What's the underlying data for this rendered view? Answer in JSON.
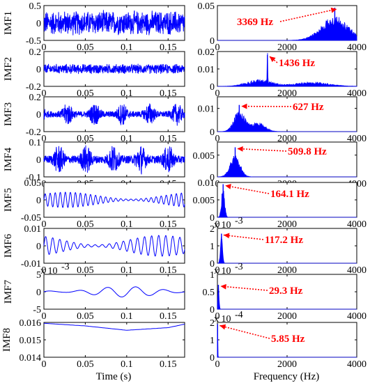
{
  "figure": {
    "time_xlabel": "Time (s)",
    "freq_xlabel": "Frequency (Hz)"
  },
  "colors": {
    "signal": "#0000ff",
    "annotation": "#ff0000",
    "axis": "#000000"
  },
  "chart_data": [
    {
      "type": "line",
      "title": "",
      "ylabel": "IMF1",
      "xlabel": "",
      "xlim": [
        0,
        0.17
      ],
      "ylim": [
        -0.5,
        0.5
      ],
      "xticks": [
        "0",
        "0.05",
        "0.1",
        "0.15"
      ],
      "xtick_values": [
        0,
        0.05,
        0.1,
        0.15
      ],
      "yticks": [
        "-0.5",
        "0",
        "0.5"
      ],
      "ytick_values": [
        -0.5,
        0,
        0.5
      ],
      "series": [
        {
          "style": "noise",
          "amplitude": 0.38,
          "envelope": "uniform"
        }
      ]
    },
    {
      "type": "line",
      "title": "",
      "ylabel": "IMF2",
      "xlabel": "",
      "xlim": [
        0,
        0.17
      ],
      "ylim": [
        -0.2,
        0.2
      ],
      "xticks": [
        "0",
        "0.05",
        "0.1",
        "0.15"
      ],
      "xtick_values": [
        0,
        0.05,
        0.1,
        0.15
      ],
      "yticks": [
        "-0.2",
        "0",
        "0.2"
      ],
      "ytick_values": [
        -0.2,
        0,
        0.2
      ],
      "series": [
        {
          "style": "noise",
          "amplitude": 0.06,
          "envelope": "uniform"
        }
      ]
    },
    {
      "type": "line",
      "title": "",
      "ylabel": "IMF3",
      "xlabel": "",
      "xlim": [
        0,
        0.17
      ],
      "ylim": [
        -0.2,
        0.2
      ],
      "xticks": [
        "0",
        "0.05",
        "0.1",
        "0.15"
      ],
      "xtick_values": [
        0,
        0.05,
        0.1,
        0.15
      ],
      "yticks": [
        "-0.2",
        "0",
        "0.2"
      ],
      "ytick_values": [
        -0.2,
        0,
        0.2
      ],
      "series": [
        {
          "style": "burst",
          "amplitude": 0.13,
          "envelope": "bursts"
        }
      ]
    },
    {
      "type": "line",
      "title": "",
      "ylabel": "IMF4",
      "xlabel": "",
      "xlim": [
        0,
        0.17
      ],
      "ylim": [
        -0.1,
        0.1
      ],
      "xticks": [
        "0",
        "0.05",
        "0.1",
        "0.15"
      ],
      "xtick_values": [
        0,
        0.05,
        0.1,
        0.15
      ],
      "yticks": [
        "-0.1",
        "0",
        "0.1"
      ],
      "ytick_values": [
        -0.1,
        0,
        0.1
      ],
      "series": [
        {
          "style": "burst",
          "amplitude": 0.085,
          "envelope": "bursts"
        }
      ]
    },
    {
      "type": "line",
      "title": "",
      "ylabel": "IMF5",
      "xlabel": "",
      "xlim": [
        0,
        0.17
      ],
      "ylim": [
        -0.05,
        0.05
      ],
      "xticks": [
        "0",
        "0.05",
        "0.1",
        "0.15"
      ],
      "xtick_values": [
        0,
        0.05,
        0.1,
        0.15
      ],
      "yticks": [
        "-0.05",
        "0",
        "0.05"
      ],
      "ytick_values": [
        -0.05,
        0,
        0.05
      ],
      "series": [
        {
          "style": "oscillation",
          "frequency_hz": 164.1,
          "amplitude": 0.022
        }
      ]
    },
    {
      "type": "line",
      "title": "",
      "ylabel": "IMF6",
      "xlabel": "",
      "xlim": [
        0,
        0.17
      ],
      "ylim": [
        -0.01,
        0.01
      ],
      "xticks": [
        "0",
        "0.05",
        "0.1",
        "0.15"
      ],
      "xtick_values": [
        0,
        0.05,
        0.1,
        0.15
      ],
      "yticks": [
        "-0.01",
        "0",
        "0.01"
      ],
      "ytick_values": [
        -0.01,
        0,
        0.01
      ],
      "series": [
        {
          "style": "oscillation",
          "frequency_hz": 117.2,
          "amplitude": 0.006
        }
      ]
    },
    {
      "type": "line",
      "title": "",
      "ylabel": "IMF7",
      "xlabel": "",
      "xlim": [
        0,
        0.17
      ],
      "ylim": [
        -0.005,
        0.005
      ],
      "xticks": [
        "0",
        "0.05",
        "0.1",
        "0.15"
      ],
      "xtick_values": [
        0,
        0.05,
        0.1,
        0.15
      ],
      "yticks": [
        "-5",
        "0",
        "5"
      ],
      "ytick_values": [
        -0.005,
        0,
        0.005
      ],
      "exponent_label": "x 10",
      "exponent_power": "-3",
      "series": [
        {
          "style": "oscillation",
          "frequency_hz": 29.3,
          "amplitude": 0.0015,
          "offset": 0.0
        }
      ]
    },
    {
      "type": "line",
      "title": "",
      "ylabel": "IMF8",
      "xlabel": "Time (s)",
      "xlim": [
        0,
        0.17
      ],
      "ylim": [
        0.014,
        0.016
      ],
      "xticks": [
        "0",
        "0.05",
        "0.1",
        "0.15"
      ],
      "xtick_values": [
        0,
        0.05,
        0.1,
        0.15
      ],
      "yticks": [
        "0.014",
        "0.015",
        "0.016"
      ],
      "ytick_values": [
        0.014,
        0.015,
        0.016
      ],
      "series": [
        {
          "style": "trend",
          "x": [
            0,
            0.05,
            0.1,
            0.15,
            0.17
          ],
          "y": [
            0.01595,
            0.0158,
            0.01555,
            0.0157,
            0.0159
          ]
        }
      ]
    },
    {
      "type": "area",
      "title": "",
      "xlim": [
        0,
        4000
      ],
      "ylim": [
        0,
        0.05
      ],
      "xticks": [
        "0",
        "2000",
        "4000"
      ],
      "xtick_values": [
        0,
        2000,
        4000
      ],
      "yticks": [
        "0",
        "0.05"
      ],
      "ytick_values": [
        0,
        0.05
      ],
      "annotation": {
        "text": "3369 Hz",
        "peak_hz": 3369,
        "peak_value": 0.047
      },
      "spectrum": [
        {
          "center_hz": 3369,
          "width_hz": 550,
          "height": 0.035,
          "noise": 0.5
        }
      ]
    },
    {
      "type": "area",
      "title": "",
      "xlim": [
        0,
        4000
      ],
      "ylim": [
        0,
        0.02
      ],
      "xticks": [
        "0",
        "2000",
        "4000"
      ],
      "xtick_values": [
        0,
        2000,
        4000
      ],
      "yticks": [
        "0",
        "0.01",
        "0.02"
      ],
      "ytick_values": [
        0,
        0.01,
        0.02
      ],
      "annotation": {
        "text": "1436 Hz",
        "peak_hz": 1436,
        "peak_value": 0.018
      },
      "spectrum": [
        {
          "center_hz": 1436,
          "width_hz": 12,
          "height": 0.018,
          "noise": 0.0
        },
        {
          "center_hz": 1200,
          "width_hz": 500,
          "height": 0.004,
          "noise": 0.7
        },
        {
          "center_hz": 2700,
          "width_hz": 700,
          "height": 0.0025,
          "noise": 0.6
        }
      ]
    },
    {
      "type": "area",
      "title": "",
      "xlim": [
        0,
        4000
      ],
      "ylim": [
        0,
        0.015
      ],
      "xticks": [
        "0",
        "2000",
        "4000"
      ],
      "xtick_values": [
        0,
        2000,
        4000
      ],
      "yticks": [
        "0",
        "0.01"
      ],
      "ytick_values": [
        0,
        0.01
      ],
      "annotation": {
        "text": "627 Hz",
        "peak_hz": 627,
        "peak_value": 0.0115
      },
      "spectrum": [
        {
          "center_hz": 627,
          "width_hz": 220,
          "height": 0.009,
          "noise": 0.5
        },
        {
          "center_hz": 1150,
          "width_hz": 300,
          "height": 0.004,
          "noise": 0.6
        }
      ]
    },
    {
      "type": "area",
      "title": "",
      "xlim": [
        0,
        4000
      ],
      "ylim": [
        0,
        0.008
      ],
      "xticks": [
        "0",
        "2000",
        "4000"
      ],
      "xtick_values": [
        0,
        2000,
        4000
      ],
      "yticks": [
        "0",
        "0.005"
      ],
      "ytick_values": [
        0,
        0.005
      ],
      "annotation": {
        "text": "509.8 Hz",
        "peak_hz": 509.8,
        "peak_value": 0.0068
      },
      "spectrum": [
        {
          "center_hz": 509.8,
          "width_hz": 200,
          "height": 0.005,
          "noise": 0.4
        }
      ]
    },
    {
      "type": "area",
      "title": "",
      "xlim": [
        0,
        4000
      ],
      "ylim": [
        0,
        0.01
      ],
      "xticks": [
        "0",
        "2000",
        "4000"
      ],
      "xtick_values": [
        0,
        2000,
        4000
      ],
      "yticks": [
        "0",
        "0.005",
        "0.01"
      ],
      "ytick_values": [
        0,
        0.005,
        0.01
      ],
      "annotation": {
        "text": "164.1 Hz",
        "peak_hz": 164.1,
        "peak_value": 0.0095
      },
      "spectrum": [
        {
          "center_hz": 164.1,
          "width_hz": 60,
          "height": 0.0095,
          "noise": 0.5
        }
      ]
    },
    {
      "type": "area",
      "title": "",
      "xlim": [
        0,
        4000
      ],
      "ylim": [
        0,
        0.002
      ],
      "xticks": [
        "0",
        "2000",
        "4000"
      ],
      "xtick_values": [
        0,
        2000,
        4000
      ],
      "yticks": [
        "0",
        "1",
        "2"
      ],
      "ytick_values": [
        0,
        0.001,
        0.002
      ],
      "exponent_label": "x 10",
      "exponent_power": "-3",
      "annotation": {
        "text": "117.2 Hz",
        "peak_hz": 117.2,
        "peak_value": 0.0017
      },
      "spectrum": [
        {
          "center_hz": 117.2,
          "width_hz": 40,
          "height": 0.0017,
          "noise": 0.3
        }
      ]
    },
    {
      "type": "area",
      "title": "",
      "xlim": [
        0,
        4000
      ],
      "ylim": [
        0,
        0.001
      ],
      "xticks": [
        "0",
        "2000",
        "4000"
      ],
      "xtick_values": [
        0,
        2000,
        4000
      ],
      "yticks": [
        "0",
        "0.5",
        "1"
      ],
      "ytick_values": [
        0,
        0.0005,
        0.001
      ],
      "exponent_label": "x 10",
      "exponent_power": "-3",
      "annotation": {
        "text": "29.3 Hz",
        "peak_hz": 29.3,
        "peak_value": 0.0007
      },
      "spectrum": [
        {
          "center_hz": 29.3,
          "width_hz": 25,
          "height": 0.0007,
          "noise": 0.3
        }
      ]
    },
    {
      "type": "area",
      "title": "",
      "xlabel": "Frequency (Hz)",
      "xlim": [
        0,
        4000
      ],
      "ylim": [
        0,
        0.0002
      ],
      "xticks": [
        "0",
        "2000",
        "4000"
      ],
      "xtick_values": [
        0,
        2000,
        4000
      ],
      "yticks": [
        "0",
        "1",
        "2"
      ],
      "ytick_values": [
        0,
        0.0001,
        0.0002
      ],
      "exponent_label": "x 10",
      "exponent_power": "-4",
      "annotation": {
        "text": "5.85 Hz",
        "peak_hz": 5.85,
        "peak_value": 0.00019
      },
      "spectrum": [
        {
          "center_hz": 5.85,
          "width_hz": 8,
          "height": 0.00019,
          "noise": 0.0
        }
      ]
    }
  ]
}
